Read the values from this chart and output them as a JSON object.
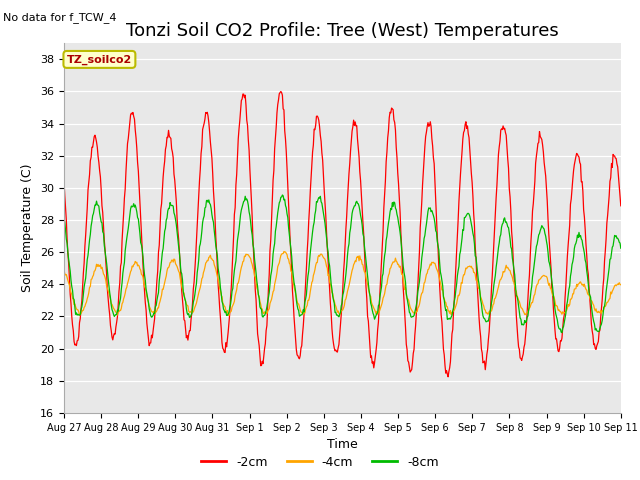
{
  "title": "Tonzi Soil CO2 Profile: Tree (West) Temperatures",
  "no_data_text": "No data for f_TCW_4",
  "ylabel": "Soil Temperature (C)",
  "xlabel": "Time",
  "legend_label": "TZ_soilco2",
  "ylim": [
    16,
    39
  ],
  "yticks": [
    16,
    18,
    20,
    22,
    24,
    26,
    28,
    30,
    32,
    34,
    36,
    38
  ],
  "xtick_labels": [
    "Aug 27",
    "Aug 28",
    "Aug 29",
    "Aug 30",
    "Aug 31",
    "Sep 1",
    "Sep 2",
    "Sep 3",
    "Sep 4",
    "Sep 5",
    "Sep 6",
    "Sep 7",
    "Sep 8",
    "Sep 9",
    "Sep 10",
    "Sep 11"
  ],
  "line_colors": {
    "2cm": "#ff0000",
    "4cm": "#ffa500",
    "8cm": "#00bb00"
  },
  "line_labels": [
    "-2cm",
    "-4cm",
    "-8cm"
  ],
  "bg_color": "#e8e8e8",
  "legend_box_color": "#ffffcc",
  "legend_box_edge": "#bbbb00",
  "title_fontsize": 13,
  "axis_label_fontsize": 9,
  "tick_fontsize": 8
}
